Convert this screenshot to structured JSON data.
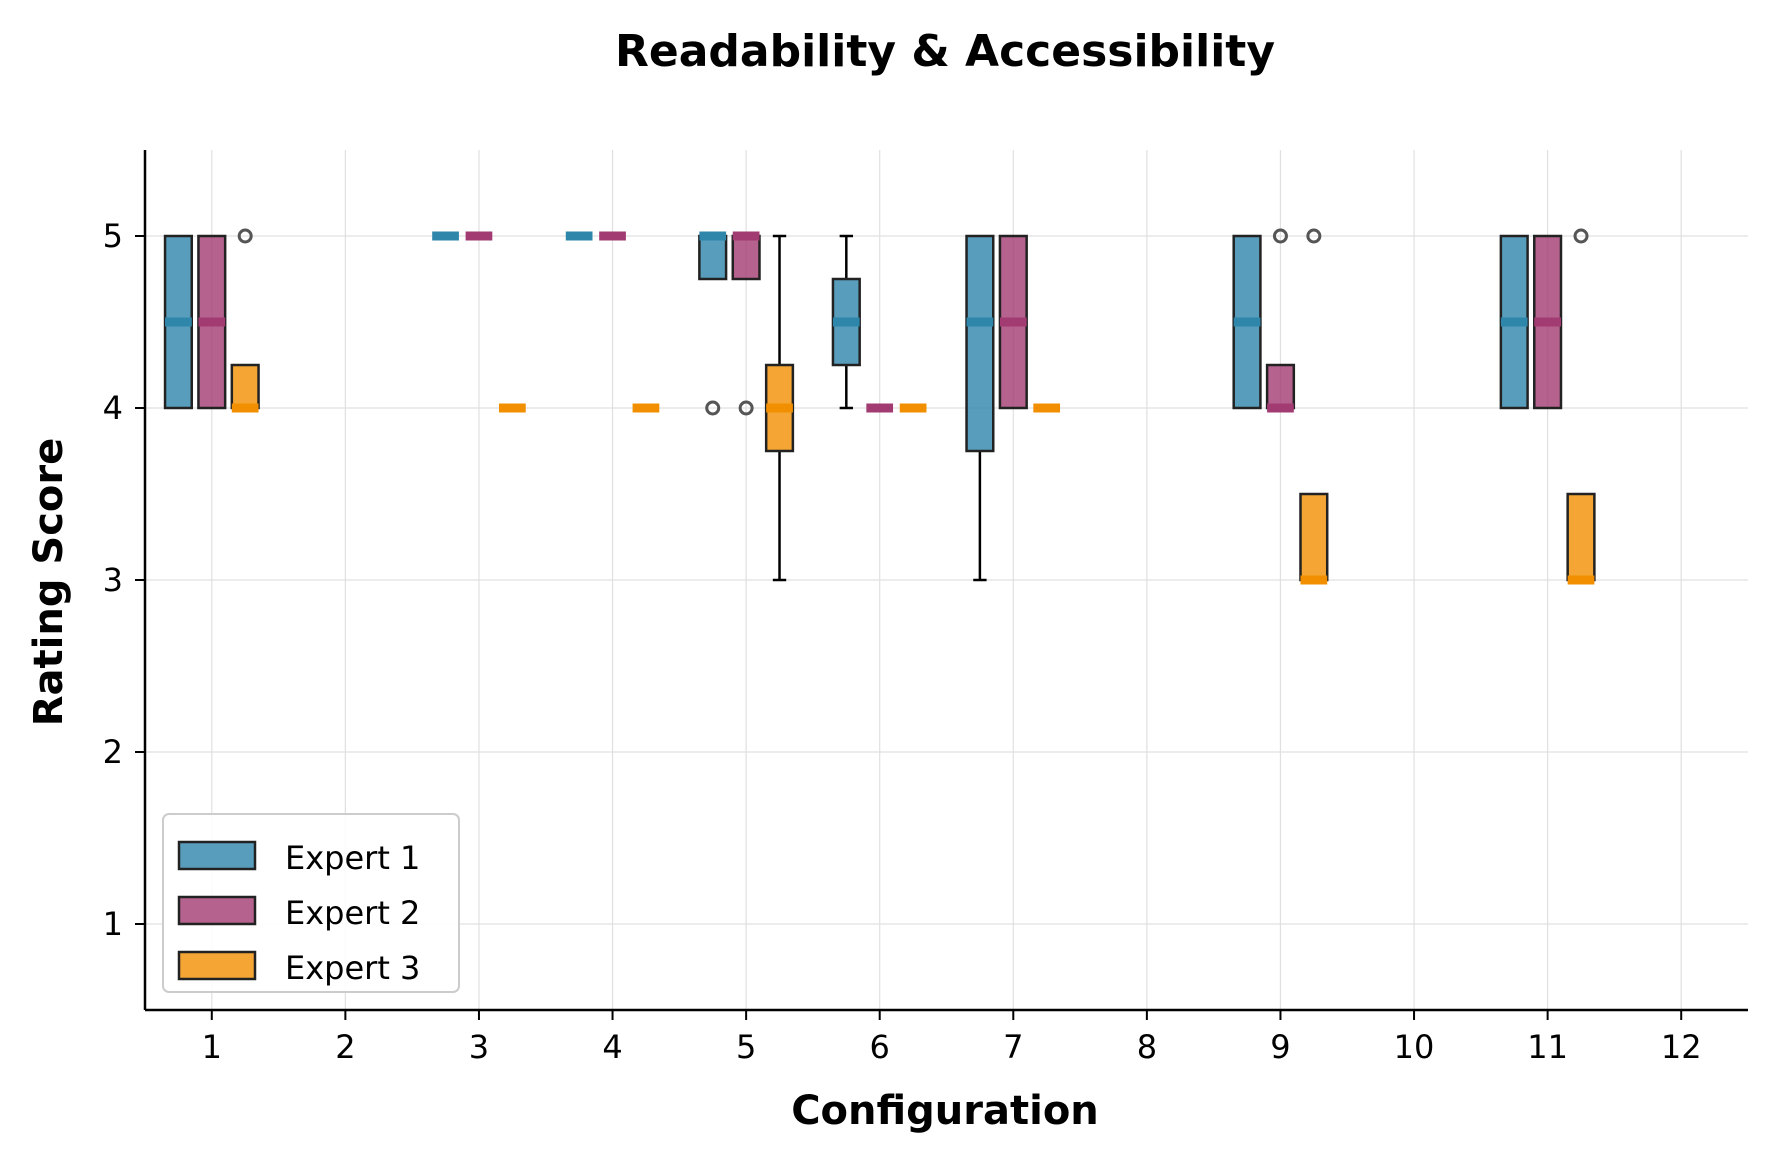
{
  "chart_data": {
    "type": "box",
    "title": "Readability & Accessibility",
    "xlabel": "Configuration",
    "ylabel": "Rating Score",
    "xlim": [
      0.5,
      12.5
    ],
    "ylim": [
      0.5,
      5.5
    ],
    "x_ticks": [
      "1",
      "2",
      "3",
      "4",
      "5",
      "6",
      "7",
      "8",
      "9",
      "10",
      "11",
      "12"
    ],
    "y_ticks": [
      "1",
      "2",
      "3",
      "4",
      "5"
    ],
    "grid": true,
    "legend_position": "lower-left",
    "series": [
      {
        "name": "Expert 1",
        "color": "#2E86AB",
        "boxes": [
          {
            "config": 1,
            "q1": 4,
            "median": 4.5,
            "q3": 5,
            "whisker_low": 4,
            "whisker_high": 5,
            "outliers": []
          },
          {
            "config": 3,
            "q1": 5,
            "median": 5,
            "q3": 5,
            "whisker_low": 5,
            "whisker_high": 5,
            "outliers": []
          },
          {
            "config": 4,
            "q1": 5,
            "median": 5,
            "q3": 5,
            "whisker_low": 5,
            "whisker_high": 5,
            "outliers": []
          },
          {
            "config": 5,
            "q1": 4.75,
            "median": 5,
            "q3": 5,
            "whisker_low": 4.75,
            "whisker_high": 5,
            "outliers": [
              4
            ]
          },
          {
            "config": 6,
            "q1": 4.25,
            "median": 4.5,
            "q3": 4.75,
            "whisker_low": 4,
            "whisker_high": 5,
            "outliers": []
          },
          {
            "config": 7,
            "q1": 3.75,
            "median": 4.5,
            "q3": 5,
            "whisker_low": 3,
            "whisker_high": 5,
            "outliers": []
          },
          {
            "config": 9,
            "q1": 4,
            "median": 4.5,
            "q3": 5,
            "whisker_low": 4,
            "whisker_high": 5,
            "outliers": []
          },
          {
            "config": 11,
            "q1": 4,
            "median": 4.5,
            "q3": 5,
            "whisker_low": 4,
            "whisker_high": 5,
            "outliers": []
          }
        ]
      },
      {
        "name": "Expert 2",
        "color": "#A23B72",
        "boxes": [
          {
            "config": 1,
            "q1": 4,
            "median": 4.5,
            "q3": 5,
            "whisker_low": 4,
            "whisker_high": 5,
            "outliers": []
          },
          {
            "config": 3,
            "q1": 5,
            "median": 5,
            "q3": 5,
            "whisker_low": 5,
            "whisker_high": 5,
            "outliers": []
          },
          {
            "config": 4,
            "q1": 5,
            "median": 5,
            "q3": 5,
            "whisker_low": 5,
            "whisker_high": 5,
            "outliers": []
          },
          {
            "config": 5,
            "q1": 4.75,
            "median": 5,
            "q3": 5,
            "whisker_low": 4.75,
            "whisker_high": 5,
            "outliers": [
              4
            ]
          },
          {
            "config": 6,
            "q1": 4,
            "median": 4,
            "q3": 4,
            "whisker_low": 4,
            "whisker_high": 4,
            "outliers": []
          },
          {
            "config": 7,
            "q1": 4,
            "median": 4.5,
            "q3": 5,
            "whisker_low": 4,
            "whisker_high": 5,
            "outliers": []
          },
          {
            "config": 9,
            "q1": 4,
            "median": 4,
            "q3": 4.25,
            "whisker_low": 4,
            "whisker_high": 4.25,
            "outliers": [
              5
            ]
          },
          {
            "config": 11,
            "q1": 4,
            "median": 4.5,
            "q3": 5,
            "whisker_low": 4,
            "whisker_high": 5,
            "outliers": []
          }
        ]
      },
      {
        "name": "Expert 3",
        "color": "#F18F01",
        "boxes": [
          {
            "config": 1,
            "q1": 4,
            "median": 4,
            "q3": 4.25,
            "whisker_low": 4,
            "whisker_high": 4.25,
            "outliers": [
              5
            ]
          },
          {
            "config": 3,
            "q1": 4,
            "median": 4,
            "q3": 4,
            "whisker_low": 4,
            "whisker_high": 4,
            "outliers": []
          },
          {
            "config": 4,
            "q1": 4,
            "median": 4,
            "q3": 4,
            "whisker_low": 4,
            "whisker_high": 4,
            "outliers": []
          },
          {
            "config": 5,
            "q1": 3.75,
            "median": 4,
            "q3": 4.25,
            "whisker_low": 3,
            "whisker_high": 5,
            "outliers": []
          },
          {
            "config": 6,
            "q1": 4,
            "median": 4,
            "q3": 4,
            "whisker_low": 4,
            "whisker_high": 4,
            "outliers": []
          },
          {
            "config": 7,
            "q1": 4,
            "median": 4,
            "q3": 4,
            "whisker_low": 4,
            "whisker_high": 4,
            "outliers": []
          },
          {
            "config": 9,
            "q1": 3,
            "median": 3,
            "q3": 3.5,
            "whisker_low": 3,
            "whisker_high": 3.5,
            "outliers": [
              5
            ]
          },
          {
            "config": 11,
            "q1": 3,
            "median": 3,
            "q3": 3.5,
            "whisker_low": 3,
            "whisker_high": 3.5,
            "outliers": [
              5
            ]
          }
        ]
      }
    ]
  }
}
